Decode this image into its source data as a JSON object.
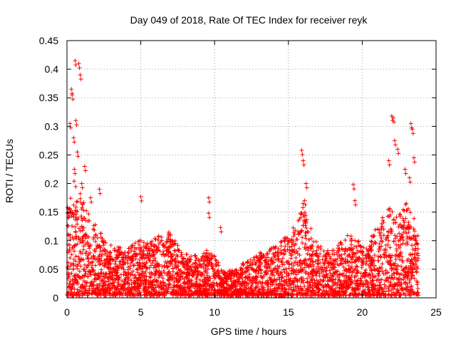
{
  "chart_data": {
    "type": "scatter",
    "title": "Day 049 of 2018, Rate Of TEC Index for receiver reyk",
    "xlabel": "GPS time / hours",
    "ylabel": "ROTI / TECUs",
    "xlim": [
      0,
      25
    ],
    "ylim": [
      0,
      0.45
    ],
    "x_ticks": [
      "0",
      "5",
      "10",
      "15",
      "20",
      "25"
    ],
    "y_ticks": [
      "0",
      "0.05",
      "0.1",
      "0.15",
      "0.2",
      "0.25",
      "0.3",
      "0.35",
      "0.4",
      "0.45"
    ],
    "grid": true,
    "marker": "+",
    "marker_color": "#ff0000",
    "series": [
      {
        "name": "ROTI",
        "envelope": {
          "hours": [
            0,
            0.5,
            1,
            1.5,
            2,
            2.5,
            3,
            3.5,
            4,
            4.5,
            5,
            5.5,
            6,
            6.5,
            7,
            7.5,
            8,
            8.5,
            9,
            9.5,
            10,
            10.5,
            11,
            11.5,
            12,
            12.5,
            13,
            13.5,
            14,
            14.5,
            15,
            15.5,
            16,
            16.5,
            17,
            17.5,
            18,
            18.5,
            19,
            19.5,
            20,
            20.5,
            21,
            21.5,
            22,
            22.5,
            23,
            23.5,
            23.8
          ],
          "typical_upper": [
            0.16,
            0.2,
            0.17,
            0.14,
            0.12,
            0.1,
            0.09,
            0.085,
            0.08,
            0.09,
            0.1,
            0.09,
            0.1,
            0.11,
            0.11,
            0.09,
            0.075,
            0.07,
            0.075,
            0.08,
            0.07,
            0.05,
            0.045,
            0.05,
            0.06,
            0.065,
            0.075,
            0.08,
            0.085,
            0.095,
            0.11,
            0.13,
            0.16,
            0.12,
            0.09,
            0.08,
            0.08,
            0.095,
            0.11,
            0.1,
            0.09,
            0.1,
            0.12,
            0.14,
            0.16,
            0.15,
            0.16,
            0.14,
            0.1
          ]
        },
        "peaks": [
          {
            "x": 0.2,
            "y": 0.305
          },
          {
            "x": 0.3,
            "y": 0.365
          },
          {
            "x": 0.35,
            "y": 0.355
          },
          {
            "x": 0.55,
            "y": 0.415
          },
          {
            "x": 0.8,
            "y": 0.41
          },
          {
            "x": 0.9,
            "y": 0.39
          },
          {
            "x": 0.6,
            "y": 0.31
          },
          {
            "x": 0.45,
            "y": 0.28
          },
          {
            "x": 0.7,
            "y": 0.255
          },
          {
            "x": 1.2,
            "y": 0.23
          },
          {
            "x": 0.5,
            "y": 0.225
          },
          {
            "x": 1.0,
            "y": 0.2
          },
          {
            "x": 2.2,
            "y": 0.19
          },
          {
            "x": 1.6,
            "y": 0.175
          },
          {
            "x": 5.0,
            "y": 0.177
          },
          {
            "x": 9.6,
            "y": 0.175
          },
          {
            "x": 9.6,
            "y": 0.148
          },
          {
            "x": 10.4,
            "y": 0.123
          },
          {
            "x": 15.9,
            "y": 0.258
          },
          {
            "x": 16.0,
            "y": 0.24
          },
          {
            "x": 16.2,
            "y": 0.2
          },
          {
            "x": 16.1,
            "y": 0.17
          },
          {
            "x": 19.4,
            "y": 0.198
          },
          {
            "x": 19.5,
            "y": 0.17
          },
          {
            "x": 22.0,
            "y": 0.318
          },
          {
            "x": 22.1,
            "y": 0.315
          },
          {
            "x": 22.2,
            "y": 0.275
          },
          {
            "x": 22.4,
            "y": 0.26
          },
          {
            "x": 23.3,
            "y": 0.305
          },
          {
            "x": 23.4,
            "y": 0.295
          },
          {
            "x": 23.5,
            "y": 0.245
          },
          {
            "x": 22.9,
            "y": 0.225
          },
          {
            "x": 23.2,
            "y": 0.21
          },
          {
            "x": 21.8,
            "y": 0.24
          }
        ]
      }
    ]
  }
}
